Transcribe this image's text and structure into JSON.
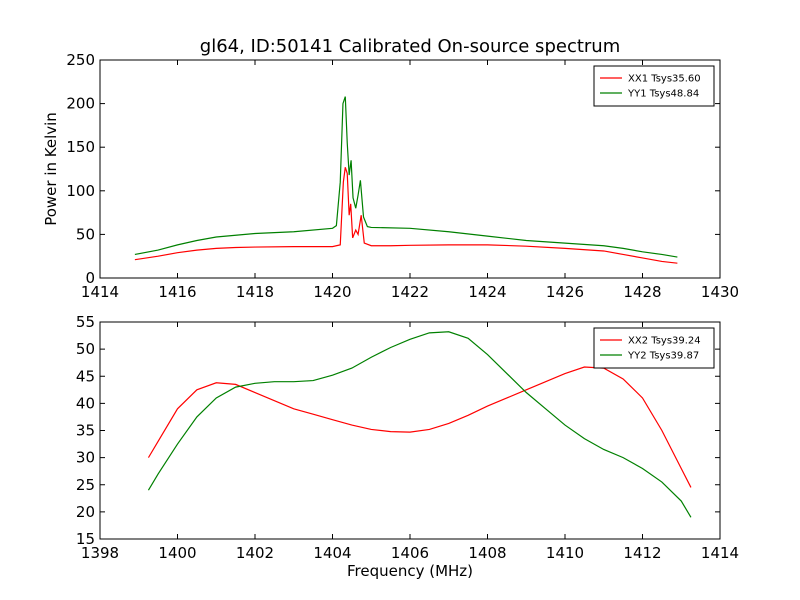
{
  "chart_data": [
    {
      "type": "line",
      "title": "gl64, ID:50141 Calibrated On-source spectrum",
      "xlabel": "",
      "ylabel": "Power in Kelvin",
      "xlim": [
        1414,
        1430
      ],
      "ylim": [
        0,
        250
      ],
      "xticks": [
        "1414",
        "1416",
        "1418",
        "1420",
        "1422",
        "1424",
        "1426",
        "1428",
        "1430"
      ],
      "yticks": [
        "0",
        "50",
        "100",
        "150",
        "200",
        "250"
      ],
      "grid": false,
      "legend_position": "top-right",
      "series": [
        {
          "name": "XX1 Tsys35.60",
          "color": "#ff0000",
          "points": [
            [
              1414.9,
              21
            ],
            [
              1415.5,
              25
            ],
            [
              1416.0,
              29
            ],
            [
              1416.5,
              32
            ],
            [
              1417.0,
              34
            ],
            [
              1417.5,
              35
            ],
            [
              1418.0,
              35.5
            ],
            [
              1419.0,
              36
            ],
            [
              1420.0,
              36
            ],
            [
              1420.2,
              38
            ],
            [
              1420.28,
              110
            ],
            [
              1420.33,
              127
            ],
            [
              1420.38,
              120
            ],
            [
              1420.43,
              72
            ],
            [
              1420.47,
              85
            ],
            [
              1420.52,
              46
            ],
            [
              1420.6,
              55
            ],
            [
              1420.66,
              50
            ],
            [
              1420.74,
              72
            ],
            [
              1420.82,
              40
            ],
            [
              1421.0,
              37
            ],
            [
              1421.5,
              37
            ],
            [
              1422.0,
              37.5
            ],
            [
              1423.0,
              38
            ],
            [
              1424.0,
              38
            ],
            [
              1425.0,
              36.5
            ],
            [
              1426.0,
              34
            ],
            [
              1427.0,
              31
            ],
            [
              1427.5,
              27
            ],
            [
              1428.0,
              23
            ],
            [
              1428.5,
              19
            ],
            [
              1428.9,
              17
            ]
          ]
        },
        {
          "name": "YY1 Tsys48.84",
          "color": "#008000",
          "points": [
            [
              1414.9,
              27
            ],
            [
              1415.5,
              32
            ],
            [
              1416.0,
              38
            ],
            [
              1416.5,
              43
            ],
            [
              1417.0,
              47
            ],
            [
              1417.5,
              49
            ],
            [
              1418.0,
              51
            ],
            [
              1419.0,
              53
            ],
            [
              1420.0,
              57
            ],
            [
              1420.1,
              60
            ],
            [
              1420.2,
              110
            ],
            [
              1420.27,
              200
            ],
            [
              1420.33,
              208
            ],
            [
              1420.38,
              155
            ],
            [
              1420.43,
              118
            ],
            [
              1420.48,
              135
            ],
            [
              1420.53,
              92
            ],
            [
              1420.6,
              80
            ],
            [
              1420.66,
              95
            ],
            [
              1420.72,
              112
            ],
            [
              1420.8,
              70
            ],
            [
              1420.9,
              59
            ],
            [
              1421.0,
              58
            ],
            [
              1422.0,
              57
            ],
            [
              1423.0,
              53
            ],
            [
              1424.0,
              48
            ],
            [
              1425.0,
              43
            ],
            [
              1426.0,
              40
            ],
            [
              1427.0,
              37
            ],
            [
              1427.5,
              34
            ],
            [
              1428.0,
              30
            ],
            [
              1428.5,
              27
            ],
            [
              1428.9,
              24
            ]
          ]
        }
      ]
    },
    {
      "type": "line",
      "title": "",
      "xlabel": "Frequency (MHz)",
      "ylabel": "",
      "xlim": [
        1398,
        1414
      ],
      "ylim": [
        15,
        55
      ],
      "xticks": [
        "1398",
        "1400",
        "1402",
        "1404",
        "1406",
        "1408",
        "1410",
        "1412",
        "1414"
      ],
      "yticks": [
        "15",
        "20",
        "25",
        "30",
        "35",
        "40",
        "45",
        "50",
        "55"
      ],
      "grid": false,
      "legend_position": "top-right",
      "series": [
        {
          "name": "XX2 Tsys39.24",
          "color": "#ff0000",
          "points": [
            [
              1399.25,
              30
            ],
            [
              1399.5,
              33
            ],
            [
              1400.0,
              39
            ],
            [
              1400.5,
              42.5
            ],
            [
              1401.0,
              43.8
            ],
            [
              1401.5,
              43.5
            ],
            [
              1402.0,
              42
            ],
            [
              1402.5,
              40.5
            ],
            [
              1403.0,
              39
            ],
            [
              1403.5,
              38
            ],
            [
              1404.0,
              37
            ],
            [
              1404.5,
              36
            ],
            [
              1405.0,
              35.2
            ],
            [
              1405.5,
              34.8
            ],
            [
              1406.0,
              34.7
            ],
            [
              1406.5,
              35.2
            ],
            [
              1407.0,
              36.3
            ],
            [
              1407.5,
              37.8
            ],
            [
              1408.0,
              39.5
            ],
            [
              1408.5,
              41
            ],
            [
              1409.0,
              42.5
            ],
            [
              1409.5,
              44
            ],
            [
              1410.0,
              45.5
            ],
            [
              1410.5,
              46.7
            ],
            [
              1411.0,
              46.5
            ],
            [
              1411.5,
              44.5
            ],
            [
              1412.0,
              41
            ],
            [
              1412.5,
              35
            ],
            [
              1413.0,
              28
            ],
            [
              1413.25,
              24.5
            ]
          ]
        },
        {
          "name": "YY2 Tsys39.87",
          "color": "#008000",
          "points": [
            [
              1399.25,
              24
            ],
            [
              1399.5,
              27
            ],
            [
              1400.0,
              32.5
            ],
            [
              1400.5,
              37.5
            ],
            [
              1401.0,
              41
            ],
            [
              1401.5,
              43
            ],
            [
              1402.0,
              43.7
            ],
            [
              1402.5,
              44
            ],
            [
              1403.0,
              44
            ],
            [
              1403.5,
              44.2
            ],
            [
              1404.0,
              45.2
            ],
            [
              1404.5,
              46.5
            ],
            [
              1405.0,
              48.5
            ],
            [
              1405.5,
              50.3
            ],
            [
              1406.0,
              51.8
            ],
            [
              1406.5,
              53
            ],
            [
              1407.0,
              53.2
            ],
            [
              1407.5,
              52
            ],
            [
              1408.0,
              49
            ],
            [
              1408.5,
              45.5
            ],
            [
              1409.0,
              42
            ],
            [
              1409.5,
              39
            ],
            [
              1410.0,
              36
            ],
            [
              1410.5,
              33.5
            ],
            [
              1411.0,
              31.5
            ],
            [
              1411.5,
              30
            ],
            [
              1412.0,
              28
            ],
            [
              1412.5,
              25.5
            ],
            [
              1413.0,
              22
            ],
            [
              1413.25,
              19
            ]
          ]
        }
      ]
    }
  ]
}
